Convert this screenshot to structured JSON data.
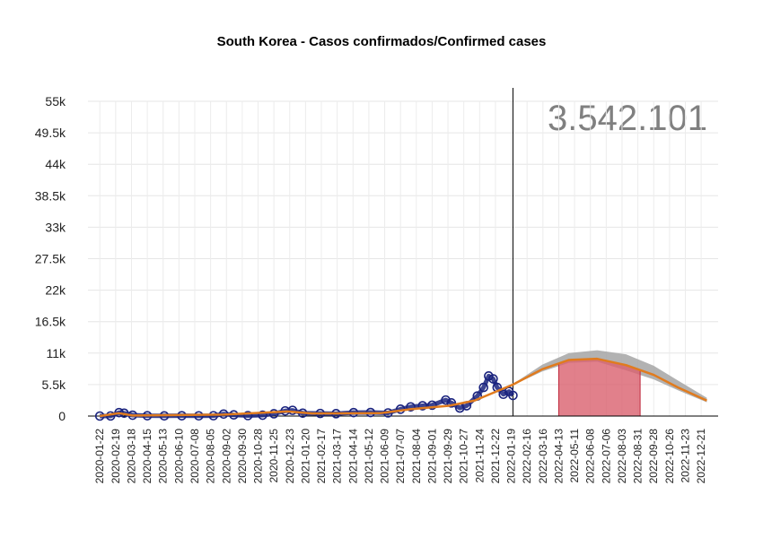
{
  "chart_data": {
    "type": "line",
    "title": "South Korea - Casos confirmados/Confirmed cases",
    "total_label": "3.542.101",
    "xlabel": "",
    "ylabel": "",
    "ylim": [
      0,
      55000
    ],
    "xlim": [
      "2020-01-01",
      "2023-01-20"
    ],
    "y_ticks": [
      0,
      5500,
      11000,
      16500,
      22000,
      27500,
      33000,
      38500,
      44000,
      49500,
      55000
    ],
    "y_tick_labels": [
      "0",
      "5.5k",
      "11k",
      "16.5k",
      "22k",
      "27.5k",
      "33k",
      "38.5k",
      "44k",
      "49.5k",
      "55k"
    ],
    "x_tick_labels": [
      "2020-01-22",
      "2020-02-19",
      "2020-03-18",
      "2020-04-15",
      "2020-05-13",
      "2020-06-10",
      "2020-07-08",
      "2020-08-05",
      "2020-09-02",
      "2020-09-30",
      "2020-10-28",
      "2020-11-25",
      "2020-12-23",
      "2021-01-20",
      "2021-02-17",
      "2021-03-17",
      "2021-04-14",
      "2021-05-12",
      "2021-06-09",
      "2021-07-07",
      "2021-08-04",
      "2021-09-01",
      "2021-09-29",
      "2021-10-27",
      "2021-11-24",
      "2021-12-22",
      "2022-01-19",
      "2022-02-16",
      "2022-03-16",
      "2022-04-13",
      "2022-05-11",
      "2022-06-08",
      "2022-07-06",
      "2022-08-03",
      "2022-08-31",
      "2022-09-28",
      "2022-10-26",
      "2022-11-23",
      "2022-12-21"
    ],
    "vline_date": "2022-01-22",
    "grid": true,
    "colors": {
      "observed": "#1a237e",
      "fit": "#e07b1e",
      "band": "#aaaaaa",
      "peak_area": "#d9606e",
      "vline": "#000000"
    },
    "series": [
      {
        "role": "observed",
        "points": [
          [
            "2020-01-22",
            0
          ],
          [
            "2020-02-10",
            20
          ],
          [
            "2020-02-25",
            600
          ],
          [
            "2020-03-05",
            500
          ],
          [
            "2020-03-20",
            150
          ],
          [
            "2020-04-15",
            50
          ],
          [
            "2020-05-15",
            30
          ],
          [
            "2020-06-15",
            50
          ],
          [
            "2020-07-15",
            40
          ],
          [
            "2020-08-10",
            60
          ],
          [
            "2020-08-28",
            350
          ],
          [
            "2020-09-15",
            200
          ],
          [
            "2020-10-10",
            80
          ],
          [
            "2020-11-05",
            150
          ],
          [
            "2020-11-25",
            400
          ],
          [
            "2020-12-15",
            900
          ],
          [
            "2020-12-28",
            1000
          ],
          [
            "2021-01-15",
            500
          ],
          [
            "2021-02-15",
            450
          ],
          [
            "2021-03-15",
            420
          ],
          [
            "2021-04-15",
            600
          ],
          [
            "2021-05-15",
            620
          ],
          [
            "2021-06-15",
            550
          ],
          [
            "2021-07-07",
            1200
          ],
          [
            "2021-07-25",
            1600
          ],
          [
            "2021-08-15",
            1800
          ],
          [
            "2021-09-01",
            1900
          ],
          [
            "2021-09-25",
            2800
          ],
          [
            "2021-10-05",
            2300
          ],
          [
            "2021-10-20",
            1400
          ],
          [
            "2021-11-01",
            1800
          ],
          [
            "2021-11-20",
            3500
          ],
          [
            "2021-12-01",
            5000
          ],
          [
            "2021-12-10",
            7000
          ],
          [
            "2021-12-18",
            6500
          ],
          [
            "2021-12-25",
            5000
          ],
          [
            "2022-01-05",
            3800
          ],
          [
            "2022-01-15",
            4300
          ],
          [
            "2022-01-22",
            3600
          ]
        ]
      },
      {
        "role": "fit",
        "points": [
          [
            "2020-01-22",
            0
          ],
          [
            "2020-02-25",
            500
          ],
          [
            "2020-03-20",
            100
          ],
          [
            "2020-08-28",
            250
          ],
          [
            "2020-12-20",
            800
          ],
          [
            "2021-02-01",
            450
          ],
          [
            "2021-06-01",
            500
          ],
          [
            "2021-07-25",
            1200
          ],
          [
            "2021-10-01",
            1800
          ],
          [
            "2021-11-15",
            2700
          ],
          [
            "2022-01-22",
            5500
          ],
          [
            "2022-03-15",
            8200
          ],
          [
            "2022-05-01",
            9800
          ],
          [
            "2022-06-20",
            10000
          ],
          [
            "2022-08-10",
            8900
          ],
          [
            "2022-09-28",
            7200
          ],
          [
            "2022-11-10",
            5000
          ],
          [
            "2022-12-31",
            2700
          ]
        ]
      },
      {
        "role": "band_upper",
        "points": [
          [
            "2022-01-22",
            5600
          ],
          [
            "2022-03-15",
            9000
          ],
          [
            "2022-05-01",
            11000
          ],
          [
            "2022-06-20",
            11500
          ],
          [
            "2022-08-10",
            10800
          ],
          [
            "2022-09-28",
            8800
          ],
          [
            "2022-11-10",
            6200
          ],
          [
            "2022-12-31",
            3200
          ]
        ]
      },
      {
        "role": "band_lower",
        "points": [
          [
            "2022-01-22",
            5400
          ],
          [
            "2022-03-15",
            7800
          ],
          [
            "2022-05-01",
            9300
          ],
          [
            "2022-06-20",
            9500
          ],
          [
            "2022-08-10",
            8000
          ],
          [
            "2022-09-28",
            6400
          ],
          [
            "2022-11-10",
            4500
          ],
          [
            "2022-12-31",
            2400
          ]
        ]
      }
    ],
    "peak_window": [
      "2022-04-13",
      "2022-09-04"
    ]
  }
}
